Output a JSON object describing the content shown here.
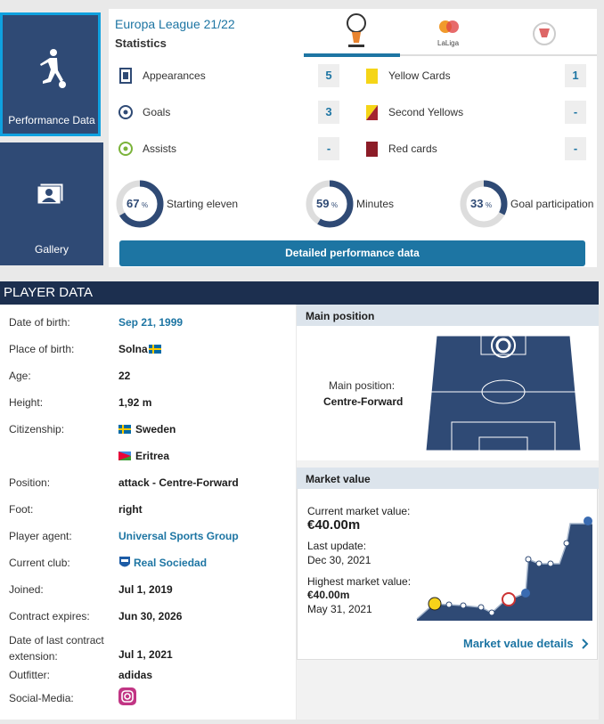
{
  "nav": [
    "Performance Data",
    "Gallery"
  ],
  "stats": {
    "competition": "Europa League 21/22",
    "heading": "Statistics",
    "tab_label": "LaLiga",
    "left": [
      {
        "label": "Appearances",
        "value": 5
      },
      {
        "label": "Goals",
        "value": 3
      },
      {
        "label": "Assists",
        "value": "-"
      }
    ],
    "right": [
      {
        "label": "Yellow Cards",
        "value": 1
      },
      {
        "label": "Second Yellows",
        "value": "-"
      },
      {
        "label": "Red cards",
        "value": "-"
      }
    ],
    "donuts": [
      {
        "value": 67,
        "unit": "%",
        "label": "Starting eleven"
      },
      {
        "value": 59,
        "unit": "%",
        "label": "Minutes"
      },
      {
        "value": 33,
        "unit": "%",
        "label": "Goal participation"
      }
    ],
    "button": "Detailed performance data"
  },
  "player_data": {
    "title": "PLAYER DATA",
    "rows": [
      {
        "label": "Date of birth:",
        "value": "Sep 21, 1999"
      },
      {
        "label": "Place of birth:",
        "value": "Solna"
      },
      {
        "label": "Age:",
        "value": "22"
      },
      {
        "label": "Height:",
        "value": "1,92 m"
      },
      {
        "label": "Citizenship:",
        "value": [
          "Sweden",
          "Eritrea"
        ]
      },
      {
        "label": "Position:",
        "value": "attack - Centre-Forward"
      },
      {
        "label": "Foot:",
        "value": "right"
      },
      {
        "label": "Player agent:",
        "value": "Universal Sports Group"
      },
      {
        "label": "Current club:",
        "value": "Real Sociedad"
      },
      {
        "label": "Joined:",
        "value": "Jul 1, 2019"
      },
      {
        "label": "Contract expires:",
        "value": "Jun 30, 2026"
      },
      {
        "label": "Date of last contract extension:",
        "value": "Jul 1, 2021"
      },
      {
        "label": "Outfitter:",
        "value": "adidas"
      },
      {
        "label": "Social-Media:",
        "value": null
      }
    ]
  },
  "main_position": {
    "heading": "Main position",
    "label": "Main position:",
    "value": "Centre-Forward"
  },
  "market_value": {
    "heading": "Market value",
    "current_label": "Current market value:",
    "current": "€40.00m",
    "update_label": "Last update:",
    "update": "Dec 30, 2021",
    "highest_label": "Highest market value:",
    "highest": "€40.00m",
    "highest_date": "May 31, 2021",
    "link": "Market value details"
  }
}
